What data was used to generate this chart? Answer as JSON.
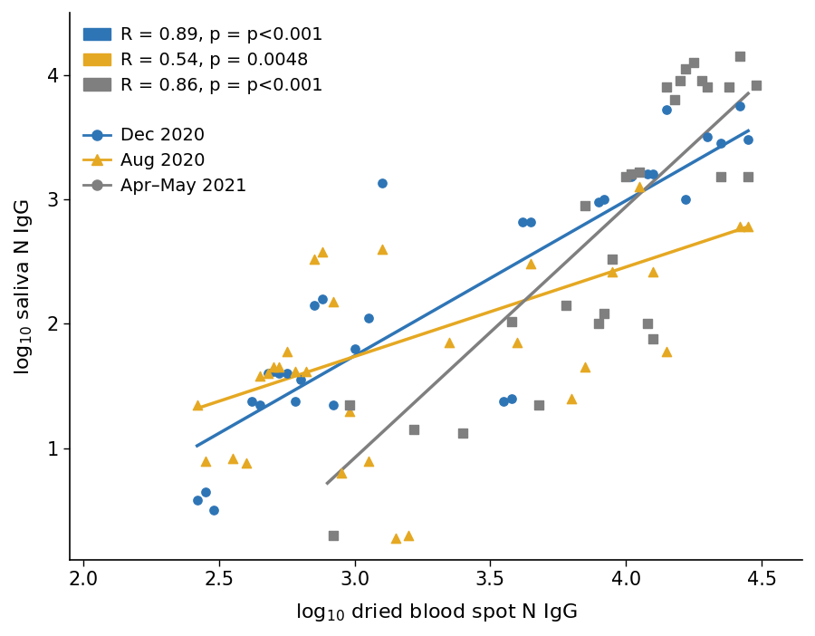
{
  "blue_x": [
    2.42,
    2.45,
    2.48,
    2.62,
    2.65,
    2.68,
    2.7,
    2.72,
    2.75,
    2.78,
    2.8,
    2.85,
    2.88,
    2.92,
    3.0,
    3.05,
    3.1,
    3.55,
    3.58,
    3.62,
    3.65,
    3.9,
    3.92,
    4.02,
    4.05,
    4.08,
    4.1,
    4.15,
    4.22,
    4.3,
    4.35,
    4.42,
    4.45
  ],
  "blue_y": [
    0.58,
    0.65,
    0.5,
    1.38,
    1.35,
    1.6,
    1.62,
    1.6,
    1.6,
    1.38,
    1.55,
    2.15,
    2.2,
    1.35,
    1.8,
    2.05,
    3.13,
    1.38,
    1.4,
    2.82,
    2.82,
    2.98,
    3.0,
    3.18,
    3.22,
    3.2,
    3.2,
    3.72,
    3.0,
    3.5,
    3.45,
    3.75,
    3.48
  ],
  "gold_x": [
    2.42,
    2.45,
    2.55,
    2.6,
    2.65,
    2.68,
    2.7,
    2.72,
    2.75,
    2.78,
    2.82,
    2.85,
    2.88,
    2.92,
    2.95,
    2.98,
    3.05,
    3.1,
    3.15,
    3.2,
    3.35,
    3.6,
    3.65,
    3.8,
    3.85,
    3.95,
    4.05,
    4.1,
    4.15,
    4.42,
    4.45
  ],
  "gold_y": [
    1.35,
    0.9,
    0.92,
    0.88,
    1.58,
    1.6,
    1.65,
    1.65,
    1.78,
    1.62,
    1.62,
    2.52,
    2.58,
    2.18,
    0.8,
    1.3,
    0.9,
    2.6,
    0.28,
    0.3,
    1.85,
    1.85,
    2.48,
    1.4,
    1.65,
    2.42,
    3.1,
    2.42,
    1.78,
    2.78,
    2.78
  ],
  "gray_x": [
    2.92,
    2.98,
    3.22,
    3.4,
    3.58,
    3.68,
    3.78,
    3.85,
    3.9,
    3.92,
    3.95,
    4.0,
    4.02,
    4.05,
    4.08,
    4.1,
    4.15,
    4.18,
    4.2,
    4.22,
    4.25,
    4.28,
    4.3,
    4.35,
    4.38,
    4.42,
    4.45,
    4.48
  ],
  "gray_y": [
    0.3,
    1.35,
    1.15,
    1.12,
    2.02,
    1.35,
    2.15,
    2.95,
    2.0,
    2.08,
    2.52,
    3.18,
    3.2,
    3.22,
    2.0,
    1.88,
    3.9,
    3.8,
    3.95,
    4.05,
    4.1,
    3.95,
    3.9,
    3.18,
    3.9,
    4.15,
    3.18,
    3.92
  ],
  "blue_line_x": [
    2.42,
    4.45
  ],
  "blue_line_y": [
    1.02,
    3.55
  ],
  "gold_line_x": [
    2.42,
    4.45
  ],
  "gold_line_y": [
    1.32,
    2.78
  ],
  "gray_line_x": [
    2.9,
    4.45
  ],
  "gray_line_y": [
    0.72,
    3.85
  ],
  "blue_color": "#2E75B6",
  "gold_color": "#E5A822",
  "gray_color": "#7F7F7F",
  "xlabel": "log$_{10}$ dried blood spot N IgG",
  "ylabel": "log$_{10}$ saliva N IgG",
  "xlim": [
    1.95,
    4.65
  ],
  "ylim": [
    0.1,
    4.5
  ],
  "xticks": [
    2.0,
    2.5,
    3.0,
    3.5,
    4.0,
    4.5
  ],
  "yticks": [
    1,
    2,
    3,
    4
  ],
  "legend1_labels": [
    "R = 0.89, p = p<0.001",
    "R = 0.54, p = 0.0048",
    "R = 0.86, p = p<0.001"
  ],
  "legend2_labels": [
    "Dec 2020",
    "Aug 2020",
    "Apr–May 2021"
  ],
  "bg_color": "#ffffff"
}
